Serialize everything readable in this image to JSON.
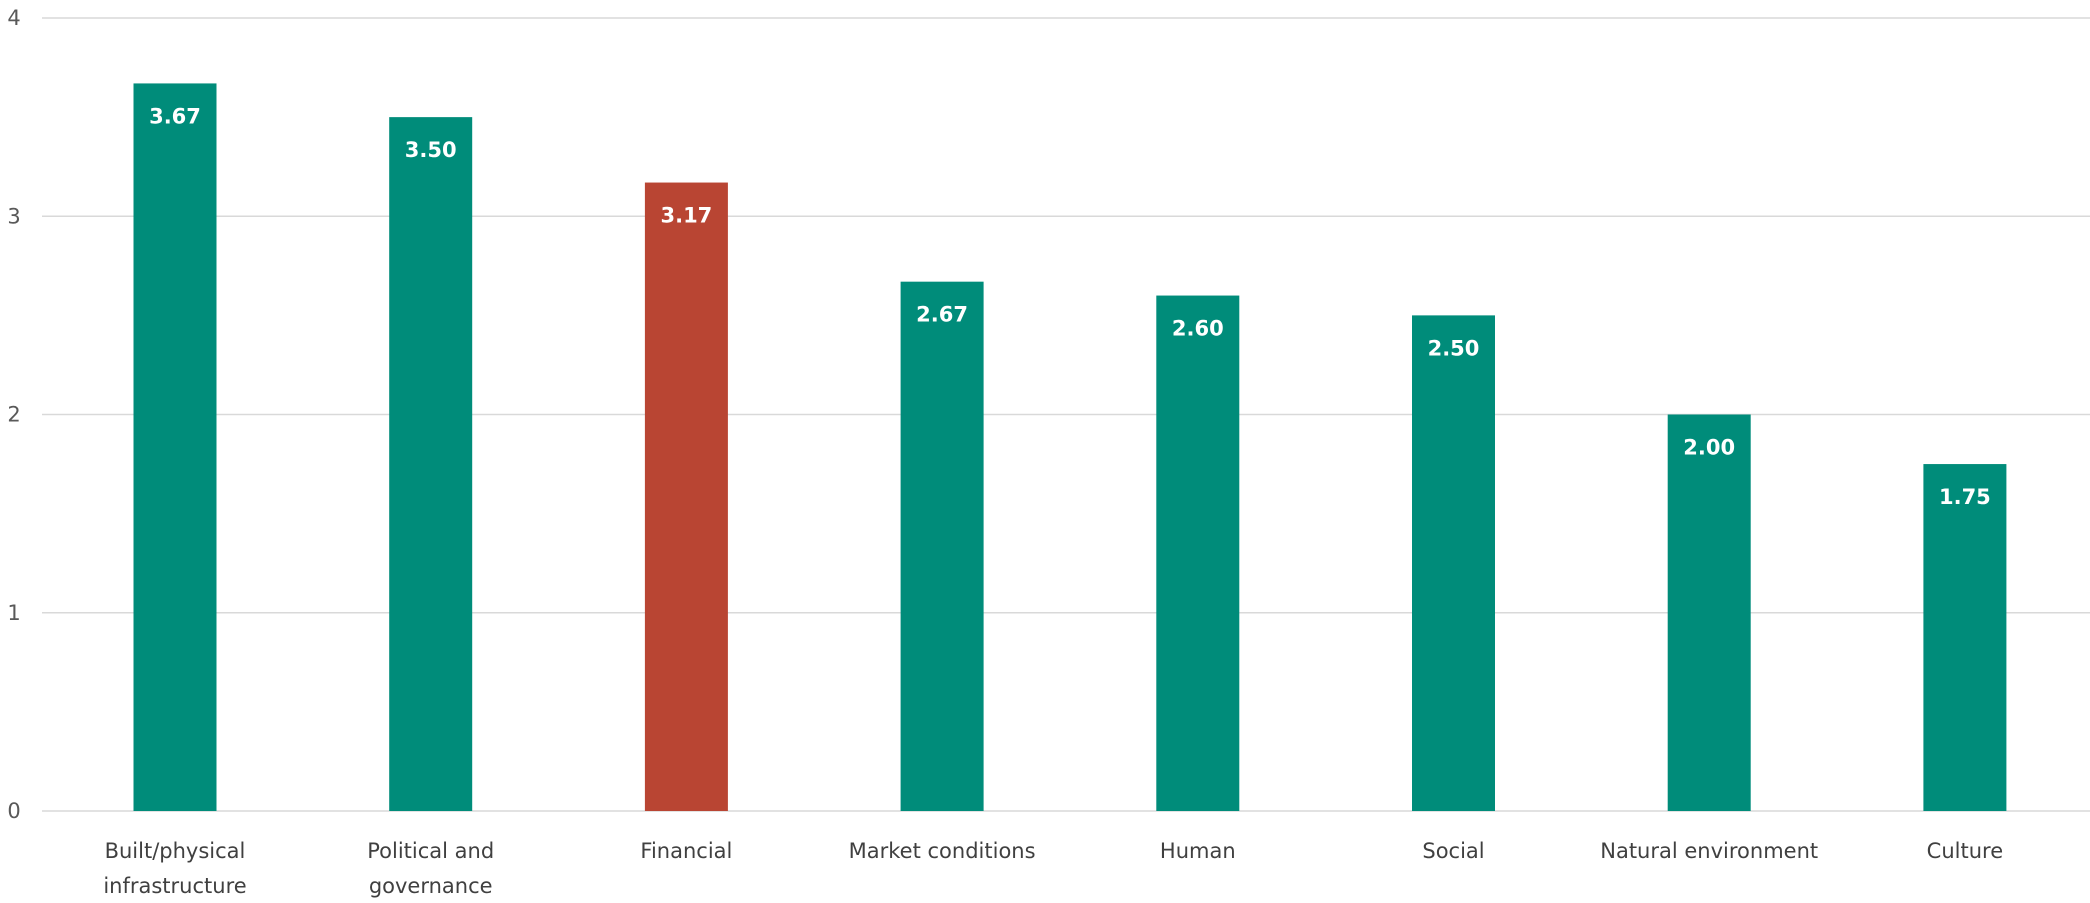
{
  "chart_data": {
    "type": "bar",
    "categories": [
      [
        "Built/physical",
        "infrastructure"
      ],
      [
        "Political and",
        "governance"
      ],
      [
        "Financial"
      ],
      [
        "Market conditions"
      ],
      [
        "Human"
      ],
      [
        "Social"
      ],
      [
        "Natural environment"
      ],
      [
        "Culture"
      ]
    ],
    "values": [
      3.67,
      3.5,
      3.17,
      2.67,
      2.6,
      2.5,
      2.0,
      1.75
    ],
    "data_labels": [
      "3.67",
      "3.50",
      "3.17",
      "2.67",
      "2.60",
      "2.50",
      "2.00",
      "1.75"
    ],
    "highlight_index": 2,
    "colors": {
      "bar": "#008c7a",
      "highlight": "#b94533",
      "grid": "#d9d9d9"
    },
    "ylim": [
      0,
      4
    ],
    "yticks": [
      0,
      1,
      2,
      3,
      4
    ],
    "grid": true,
    "legend": "none",
    "title": "",
    "xlabel": "",
    "ylabel": ""
  }
}
